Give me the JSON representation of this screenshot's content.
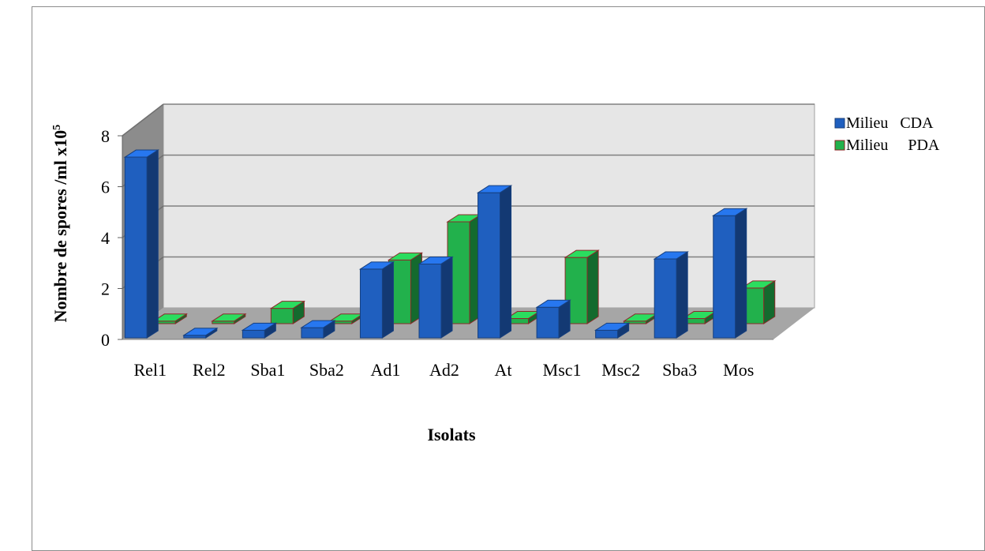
{
  "chart_data": {
    "type": "bar",
    "title": "",
    "xlabel": "Isolats",
    "ylabel_main": "Nombre de spores /ml x10",
    "ylabel_sup": "5",
    "categories": [
      "Rel1",
      "Rel2",
      "Sba1",
      "Sba2",
      "Ad1",
      "Ad2",
      "At",
      "Msc1",
      "Msc2",
      "Sba3",
      "Mos"
    ],
    "series": [
      {
        "name": "Milieu   CDA",
        "color": "#1f5fbf",
        "values": [
          7.1,
          0.1,
          0.3,
          0.4,
          2.7,
          2.9,
          5.7,
          1.2,
          0.3,
          3.1,
          4.8
        ]
      },
      {
        "name": "Milieu     PDA",
        "color": "#22b14c",
        "values": [
          0.1,
          0.1,
          0.6,
          0.1,
          2.5,
          4.0,
          0.2,
          2.6,
          0.1,
          0.2,
          1.4
        ]
      }
    ],
    "yticks": [
      "0",
      "2",
      "4",
      "6",
      "8"
    ],
    "ylim": [
      0,
      8
    ],
    "legend_position": "right",
    "grid": true,
    "style": "3d-clustered-column"
  }
}
